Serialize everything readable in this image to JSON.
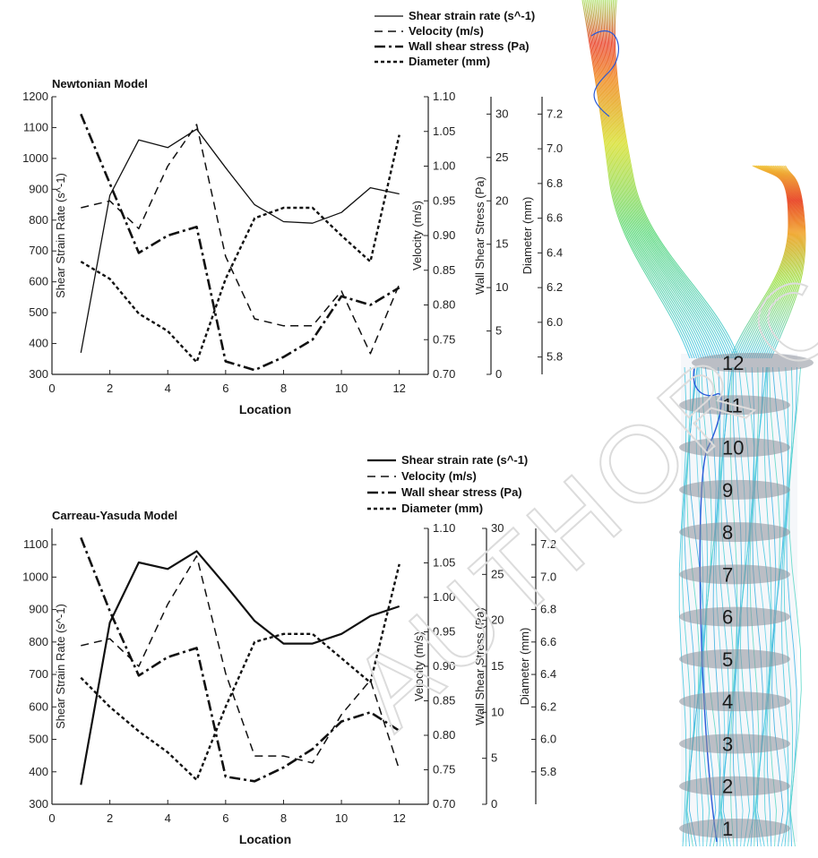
{
  "watermark_text": "AUTHOR COPY",
  "chart_data": [
    {
      "type": "line",
      "title": "Newtonian Model",
      "xlabel": "Location",
      "xlim": [
        0,
        13
      ],
      "xticks": [
        0,
        2,
        4,
        6,
        8,
        10,
        12
      ],
      "x": [
        1,
        2,
        3,
        4,
        5,
        6,
        7,
        8,
        9,
        10,
        11,
        12
      ],
      "legend_placement": "top-right",
      "axes": [
        {
          "label": "Shear Strain Rate (s^-1)",
          "ylim": [
            300,
            1200
          ],
          "ticks": [
            300,
            400,
            500,
            600,
            700,
            800,
            900,
            1000,
            1100,
            1200
          ],
          "decimals": 0
        },
        {
          "label": "Velocity (m/s)",
          "ylim": [
            0.7,
            1.1
          ],
          "ticks": [
            0.7,
            0.75,
            0.8,
            0.85,
            0.9,
            0.95,
            1.0,
            1.05,
            1.1
          ],
          "decimals": 2
        },
        {
          "label": "Wall Shear Stress (Pa)",
          "ylim": [
            0,
            32
          ],
          "ticks": [
            0,
            5,
            10,
            15,
            20,
            25,
            30
          ],
          "decimals": 0
        },
        {
          "label": "Diameter (mm)",
          "ylim": [
            5.7,
            7.3
          ],
          "ticks": [
            5.8,
            6.0,
            6.2,
            6.4,
            6.6,
            6.8,
            7.0,
            7.2
          ],
          "decimals": 1
        }
      ],
      "series": [
        {
          "name": "Shear strain rate (s^-1)",
          "axis": 0,
          "style": "solid",
          "values": [
            370,
            880,
            1060,
            1035,
            1095,
            970,
            850,
            795,
            790,
            825,
            905,
            885
          ]
        },
        {
          "name": "Velocity (m/s)",
          "axis": 1,
          "style": "dash",
          "values": [
            0.94,
            0.95,
            0.91,
            1.0,
            1.06,
            0.87,
            0.78,
            0.77,
            0.77,
            0.82,
            0.73,
            0.83
          ]
        },
        {
          "name": "Wall shear stress (Pa)",
          "axis": 2,
          "style": "dashdot",
          "values": [
            30,
            22,
            14,
            16,
            17,
            1.5,
            0.5,
            2,
            4,
            9,
            8,
            10
          ]
        },
        {
          "name": "Diameter (mm)",
          "axis": 3,
          "style": "dot",
          "values": [
            6.35,
            6.25,
            6.05,
            5.95,
            5.77,
            6.25,
            6.6,
            6.66,
            6.66,
            6.5,
            6.35,
            7.08
          ]
        }
      ]
    },
    {
      "type": "line",
      "title": "Carreau-Yasuda Model",
      "xlabel": "Location",
      "xlim": [
        0,
        13
      ],
      "xticks": [
        0,
        2,
        4,
        6,
        8,
        10,
        12
      ],
      "x": [
        1,
        2,
        3,
        4,
        5,
        6,
        7,
        8,
        9,
        10,
        11,
        12
      ],
      "legend_placement": "top-right",
      "axes": [
        {
          "label": "Shear Strain Rate (s^-1)",
          "ylim": [
            300,
            1150
          ],
          "ticks": [
            300,
            400,
            500,
            600,
            700,
            800,
            900,
            1000,
            1100
          ],
          "decimals": 0
        },
        {
          "label": "Velocity (m/s)",
          "ylim": [
            0.7,
            1.1
          ],
          "ticks": [
            0.7,
            0.75,
            0.8,
            0.85,
            0.9,
            0.95,
            1.0,
            1.05,
            1.1
          ],
          "decimals": 2
        },
        {
          "label": "Wall Shear Stress (Pa)",
          "ylim": [
            0,
            30
          ],
          "ticks": [
            0,
            5,
            10,
            15,
            20,
            25,
            30
          ],
          "decimals": 0
        },
        {
          "label": "Diameter (mm)",
          "ylim": [
            5.6,
            7.3
          ],
          "ticks": [
            5.8,
            6.0,
            6.2,
            6.4,
            6.6,
            6.8,
            7.0,
            7.2
          ],
          "decimals": 1
        }
      ],
      "series": [
        {
          "name": "Shear strain rate (s^-1)",
          "axis": 0,
          "style": "solid-bold",
          "values": [
            360,
            860,
            1045,
            1025,
            1080,
            975,
            865,
            795,
            795,
            825,
            880,
            910
          ]
        },
        {
          "name": "Velocity (m/s)",
          "axis": 1,
          "style": "dash",
          "values": [
            0.93,
            0.94,
            0.9,
            0.99,
            1.06,
            0.89,
            0.77,
            0.77,
            0.76,
            0.83,
            0.88,
            0.75
          ]
        },
        {
          "name": "Wall shear stress (Pa)",
          "axis": 2,
          "style": "dashdot",
          "values": [
            29,
            21,
            14,
            16,
            17,
            3,
            2.5,
            4,
            6,
            9,
            10,
            8
          ]
        },
        {
          "name": "Diameter (mm)",
          "axis": 3,
          "style": "dot",
          "values": [
            6.38,
            6.2,
            6.05,
            5.92,
            5.75,
            6.2,
            6.6,
            6.65,
            6.65,
            6.5,
            6.35,
            7.08
          ]
        }
      ]
    }
  ],
  "illustration": {
    "slice_labels": [
      "12",
      "11",
      "10",
      "9",
      "8",
      "7",
      "6",
      "5",
      "4",
      "3",
      "2",
      "1"
    ]
  }
}
